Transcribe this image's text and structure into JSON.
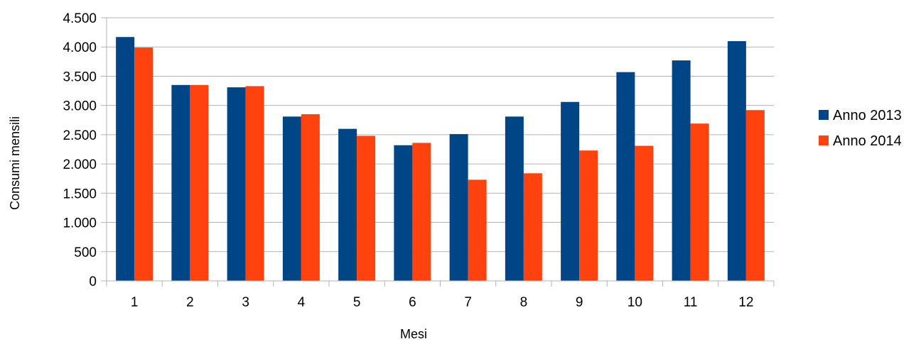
{
  "chart_data": {
    "type": "bar",
    "title": "",
    "xlabel": "Mesi",
    "ylabel": "Consumi mensili",
    "categories": [
      "1",
      "2",
      "3",
      "4",
      "5",
      "6",
      "7",
      "8",
      "9",
      "10",
      "11",
      "12"
    ],
    "series": [
      {
        "name": "Anno 2013",
        "color": "#004586",
        "values": [
          4170,
          3350,
          3310,
          2810,
          2600,
          2320,
          2510,
          2810,
          3060,
          3570,
          3770,
          4100
        ]
      },
      {
        "name": "Anno 2014",
        "color": "#ff420e",
        "values": [
          3990,
          3350,
          3330,
          2850,
          2480,
          2360,
          1730,
          1840,
          2230,
          2310,
          2690,
          2920
        ]
      }
    ],
    "ylim": [
      0,
      4500
    ],
    "yticks": [
      0,
      500,
      1000,
      1500,
      2000,
      2500,
      3000,
      3500,
      4000,
      4500
    ],
    "ytick_labels": [
      "0",
      "500",
      "1.000",
      "1.500",
      "2.000",
      "2.500",
      "3.000",
      "3.500",
      "4.000",
      "4.500"
    ],
    "grid": true,
    "legend_position": "right"
  }
}
